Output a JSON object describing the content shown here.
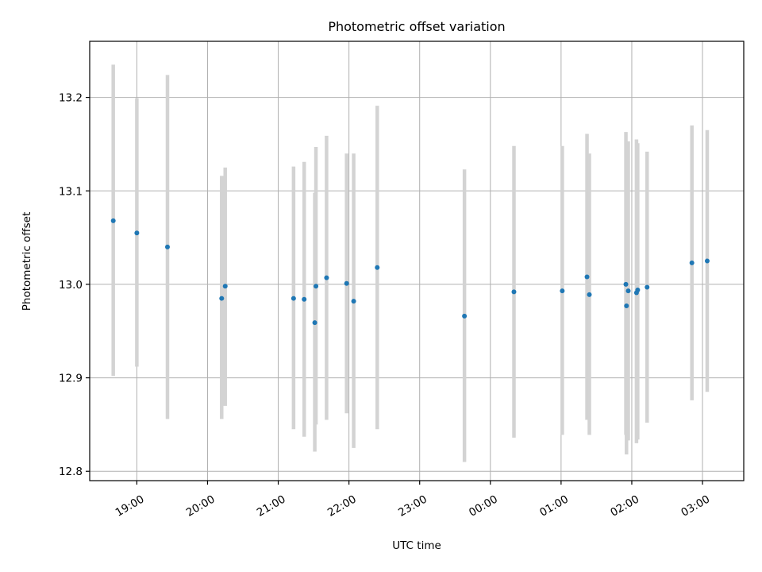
{
  "chart_data": {
    "type": "scatter",
    "title": "Photometric offset variation",
    "xlabel": "UTC time",
    "ylabel": "Photometric offset",
    "x_axis": "time",
    "x_start_date": "2000-01-01",
    "xlim": [
      "2000-01-01T18:20:00",
      "2000-01-02T03:35:00"
    ],
    "ylim": [
      12.79,
      13.26
    ],
    "xticks": [
      {
        "label": "19:00",
        "time": "2000-01-01T19:00:00"
      },
      {
        "label": "20:00",
        "time": "2000-01-01T20:00:00"
      },
      {
        "label": "21:00",
        "time": "2000-01-01T21:00:00"
      },
      {
        "label": "22:00",
        "time": "2000-01-01T22:00:00"
      },
      {
        "label": "23:00",
        "time": "2000-01-01T23:00:00"
      },
      {
        "label": "00:00",
        "time": "2000-01-02T00:00:00"
      },
      {
        "label": "01:00",
        "time": "2000-01-02T01:00:00"
      },
      {
        "label": "02:00",
        "time": "2000-01-02T02:00:00"
      },
      {
        "label": "03:00",
        "time": "2000-01-02T03:00:00"
      }
    ],
    "yticks": [
      {
        "label": "12.8",
        "value": 12.8
      },
      {
        "label": "12.9",
        "value": 12.9
      },
      {
        "label": "13.0",
        "value": 13.0
      },
      {
        "label": "13.1",
        "value": 13.1
      },
      {
        "label": "13.2",
        "value": 13.2
      }
    ],
    "grid": true,
    "point_color": "#1f77b4",
    "errorbar_color": "#d3d3d3",
    "points": [
      {
        "x": "2000-01-01T18:40:00",
        "y": 13.068,
        "ylo": 12.902,
        "yhi": 13.235
      },
      {
        "x": "2000-01-01T19:00:00",
        "y": 13.055,
        "ylo": 12.912,
        "yhi": 13.199
      },
      {
        "x": "2000-01-01T19:26:00",
        "y": 13.04,
        "ylo": 12.856,
        "yhi": 13.224
      },
      {
        "x": "2000-01-01T20:12:00",
        "y": 12.985,
        "ylo": 12.856,
        "yhi": 13.116
      },
      {
        "x": "2000-01-01T20:15:00",
        "y": 12.998,
        "ylo": 12.87,
        "yhi": 13.125
      },
      {
        "x": "2000-01-01T21:13:00",
        "y": 12.985,
        "ylo": 12.845,
        "yhi": 13.126
      },
      {
        "x": "2000-01-01T21:22:00",
        "y": 12.984,
        "ylo": 12.837,
        "yhi": 13.131
      },
      {
        "x": "2000-01-01T21:31:00",
        "y": 12.959,
        "ylo": 12.821,
        "yhi": 13.098
      },
      {
        "x": "2000-01-01T21:32:00",
        "y": 12.998,
        "ylo": 12.85,
        "yhi": 13.147
      },
      {
        "x": "2000-01-01T21:41:00",
        "y": 13.007,
        "ylo": 12.855,
        "yhi": 13.159
      },
      {
        "x": "2000-01-01T21:58:00",
        "y": 13.001,
        "ylo": 12.862,
        "yhi": 13.14
      },
      {
        "x": "2000-01-01T22:04:00",
        "y": 12.982,
        "ylo": 12.825,
        "yhi": 13.14
      },
      {
        "x": "2000-01-01T22:24:00",
        "y": 13.018,
        "ylo": 12.845,
        "yhi": 13.191
      },
      {
        "x": "2000-01-01T23:38:00",
        "y": 12.966,
        "ylo": 12.81,
        "yhi": 13.123
      },
      {
        "x": "2000-01-02T00:20:00",
        "y": 12.992,
        "ylo": 12.836,
        "yhi": 13.148
      },
      {
        "x": "2000-01-02T01:01:00",
        "y": 12.993,
        "ylo": 12.839,
        "yhi": 13.148
      },
      {
        "x": "2000-01-02T01:22:00",
        "y": 13.008,
        "ylo": 12.855,
        "yhi": 13.161
      },
      {
        "x": "2000-01-02T01:24:00",
        "y": 12.989,
        "ylo": 12.839,
        "yhi": 13.14
      },
      {
        "x": "2000-01-02T01:55:00",
        "y": 13.0,
        "ylo": 12.839,
        "yhi": 13.163
      },
      {
        "x": "2000-01-02T01:55:30",
        "y": 12.977,
        "ylo": 12.818,
        "yhi": 13.135
      },
      {
        "x": "2000-01-02T01:57:00",
        "y": 12.993,
        "ylo": 12.833,
        "yhi": 13.153
      },
      {
        "x": "2000-01-02T02:04:00",
        "y": 12.991,
        "ylo": 12.83,
        "yhi": 13.155
      },
      {
        "x": "2000-01-02T02:05:00",
        "y": 12.994,
        "ylo": 12.834,
        "yhi": 13.151
      },
      {
        "x": "2000-01-02T02:13:00",
        "y": 12.997,
        "ylo": 12.852,
        "yhi": 13.142
      },
      {
        "x": "2000-01-02T02:51:00",
        "y": 13.023,
        "ylo": 12.876,
        "yhi": 13.17
      },
      {
        "x": "2000-01-02T03:04:00",
        "y": 13.025,
        "ylo": 12.885,
        "yhi": 13.165
      }
    ]
  }
}
